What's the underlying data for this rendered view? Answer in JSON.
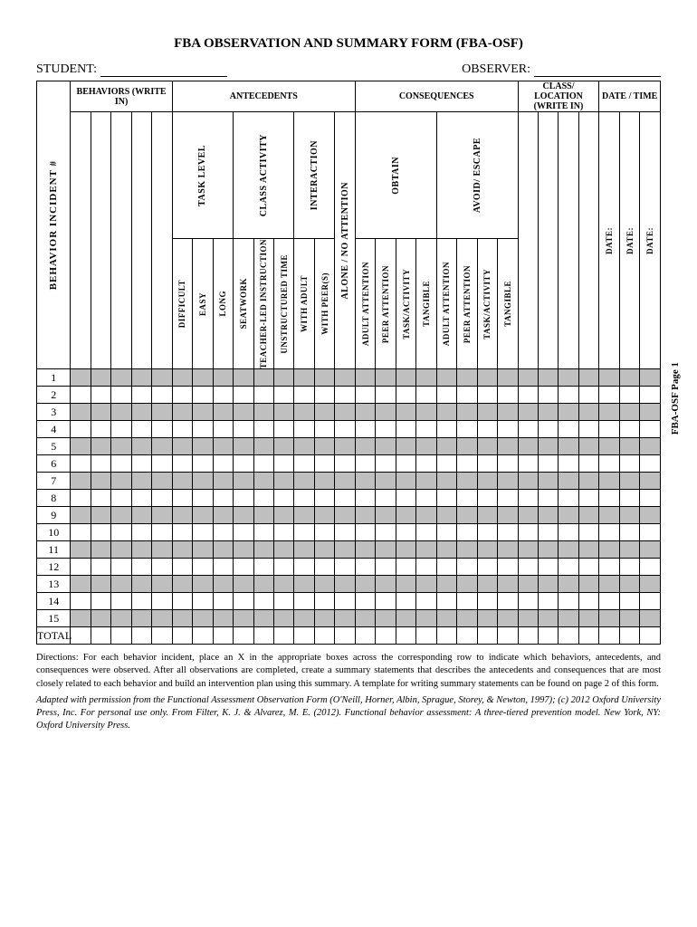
{
  "title": "FBA OBSERVATION AND SUMMARY FORM (FBA-OSF)",
  "fields": {
    "student_label": "STUDENT:",
    "observer_label": "OBSERVER:"
  },
  "headers": {
    "behaviors": "BEHAVIORS (WRITE IN)",
    "antecedents": "ANTECEDENTS",
    "consequences": "CONSEQUENCES",
    "class_location": "CLASS/ LOCATION (WRITE IN)",
    "date_time": "DATE / TIME",
    "incident": "BEHAVIOR   INCIDENT  #",
    "task_level": "TASK LEVEL",
    "class_activity": "CLASS ACTIVITY",
    "interaction": "INTERACTION",
    "obtain": "OBTAIN",
    "avoid": "AVOID/ ESCAPE"
  },
  "sublabels": {
    "difficult": "DIFFICULT",
    "easy": "EASY",
    "long": "LONG",
    "seatwork": "SEATWORK",
    "teacher_led": "TEACHER-LED INSTRUCTION",
    "unstructured": "UNSTRUCTURED TIME",
    "with_adult": "WITH ADULT",
    "with_peers": "WITH  PEER(S)",
    "alone": "ALONE / NO ATTENTION",
    "adult_attention": "ADULT ATTENTION",
    "peer_attention": "PEER ATTENTION",
    "task_activity": "TASK/ACTIVITY",
    "tangible": "TANGIBLE",
    "date": "DATE:"
  },
  "rows": [
    "1",
    "2",
    "3",
    "4",
    "5",
    "6",
    "7",
    "8",
    "9",
    "10",
    "11",
    "12",
    "13",
    "14",
    "15",
    "TOTAL"
  ],
  "shaded_rows": [
    0,
    2,
    4,
    6,
    8,
    10,
    12,
    14
  ],
  "directions": "Directions: For each behavior incident, place an X in the appropriate boxes across the corresponding row to indicate which behaviors, antecedents, and consequences were observed. After all observations are completed, create a summary statements that describes the antecedents and consequences that are most closely related to each behavior and build an intervention plan using this summary. A template for writing summary statements can be found on page 2 of this form.",
  "citation": "Adapted with permission from the Functional Assessment Observation Form (O'Neill, Horner, Albin, Sprague, Storey, & Newton, 1997); (c) 2012 Oxford University Press, Inc.  For personal use only.  From Filter, K. J. & Alvarez, M. E. (2012).  Functional behavior assessment: A three-tiered prevention model. New York, NY: Oxford University Press.",
  "sidefoot": "FBA-OSF Page 1",
  "colors": {
    "shade": "#bfbfbf",
    "border": "#000000",
    "background": "#ffffff"
  }
}
